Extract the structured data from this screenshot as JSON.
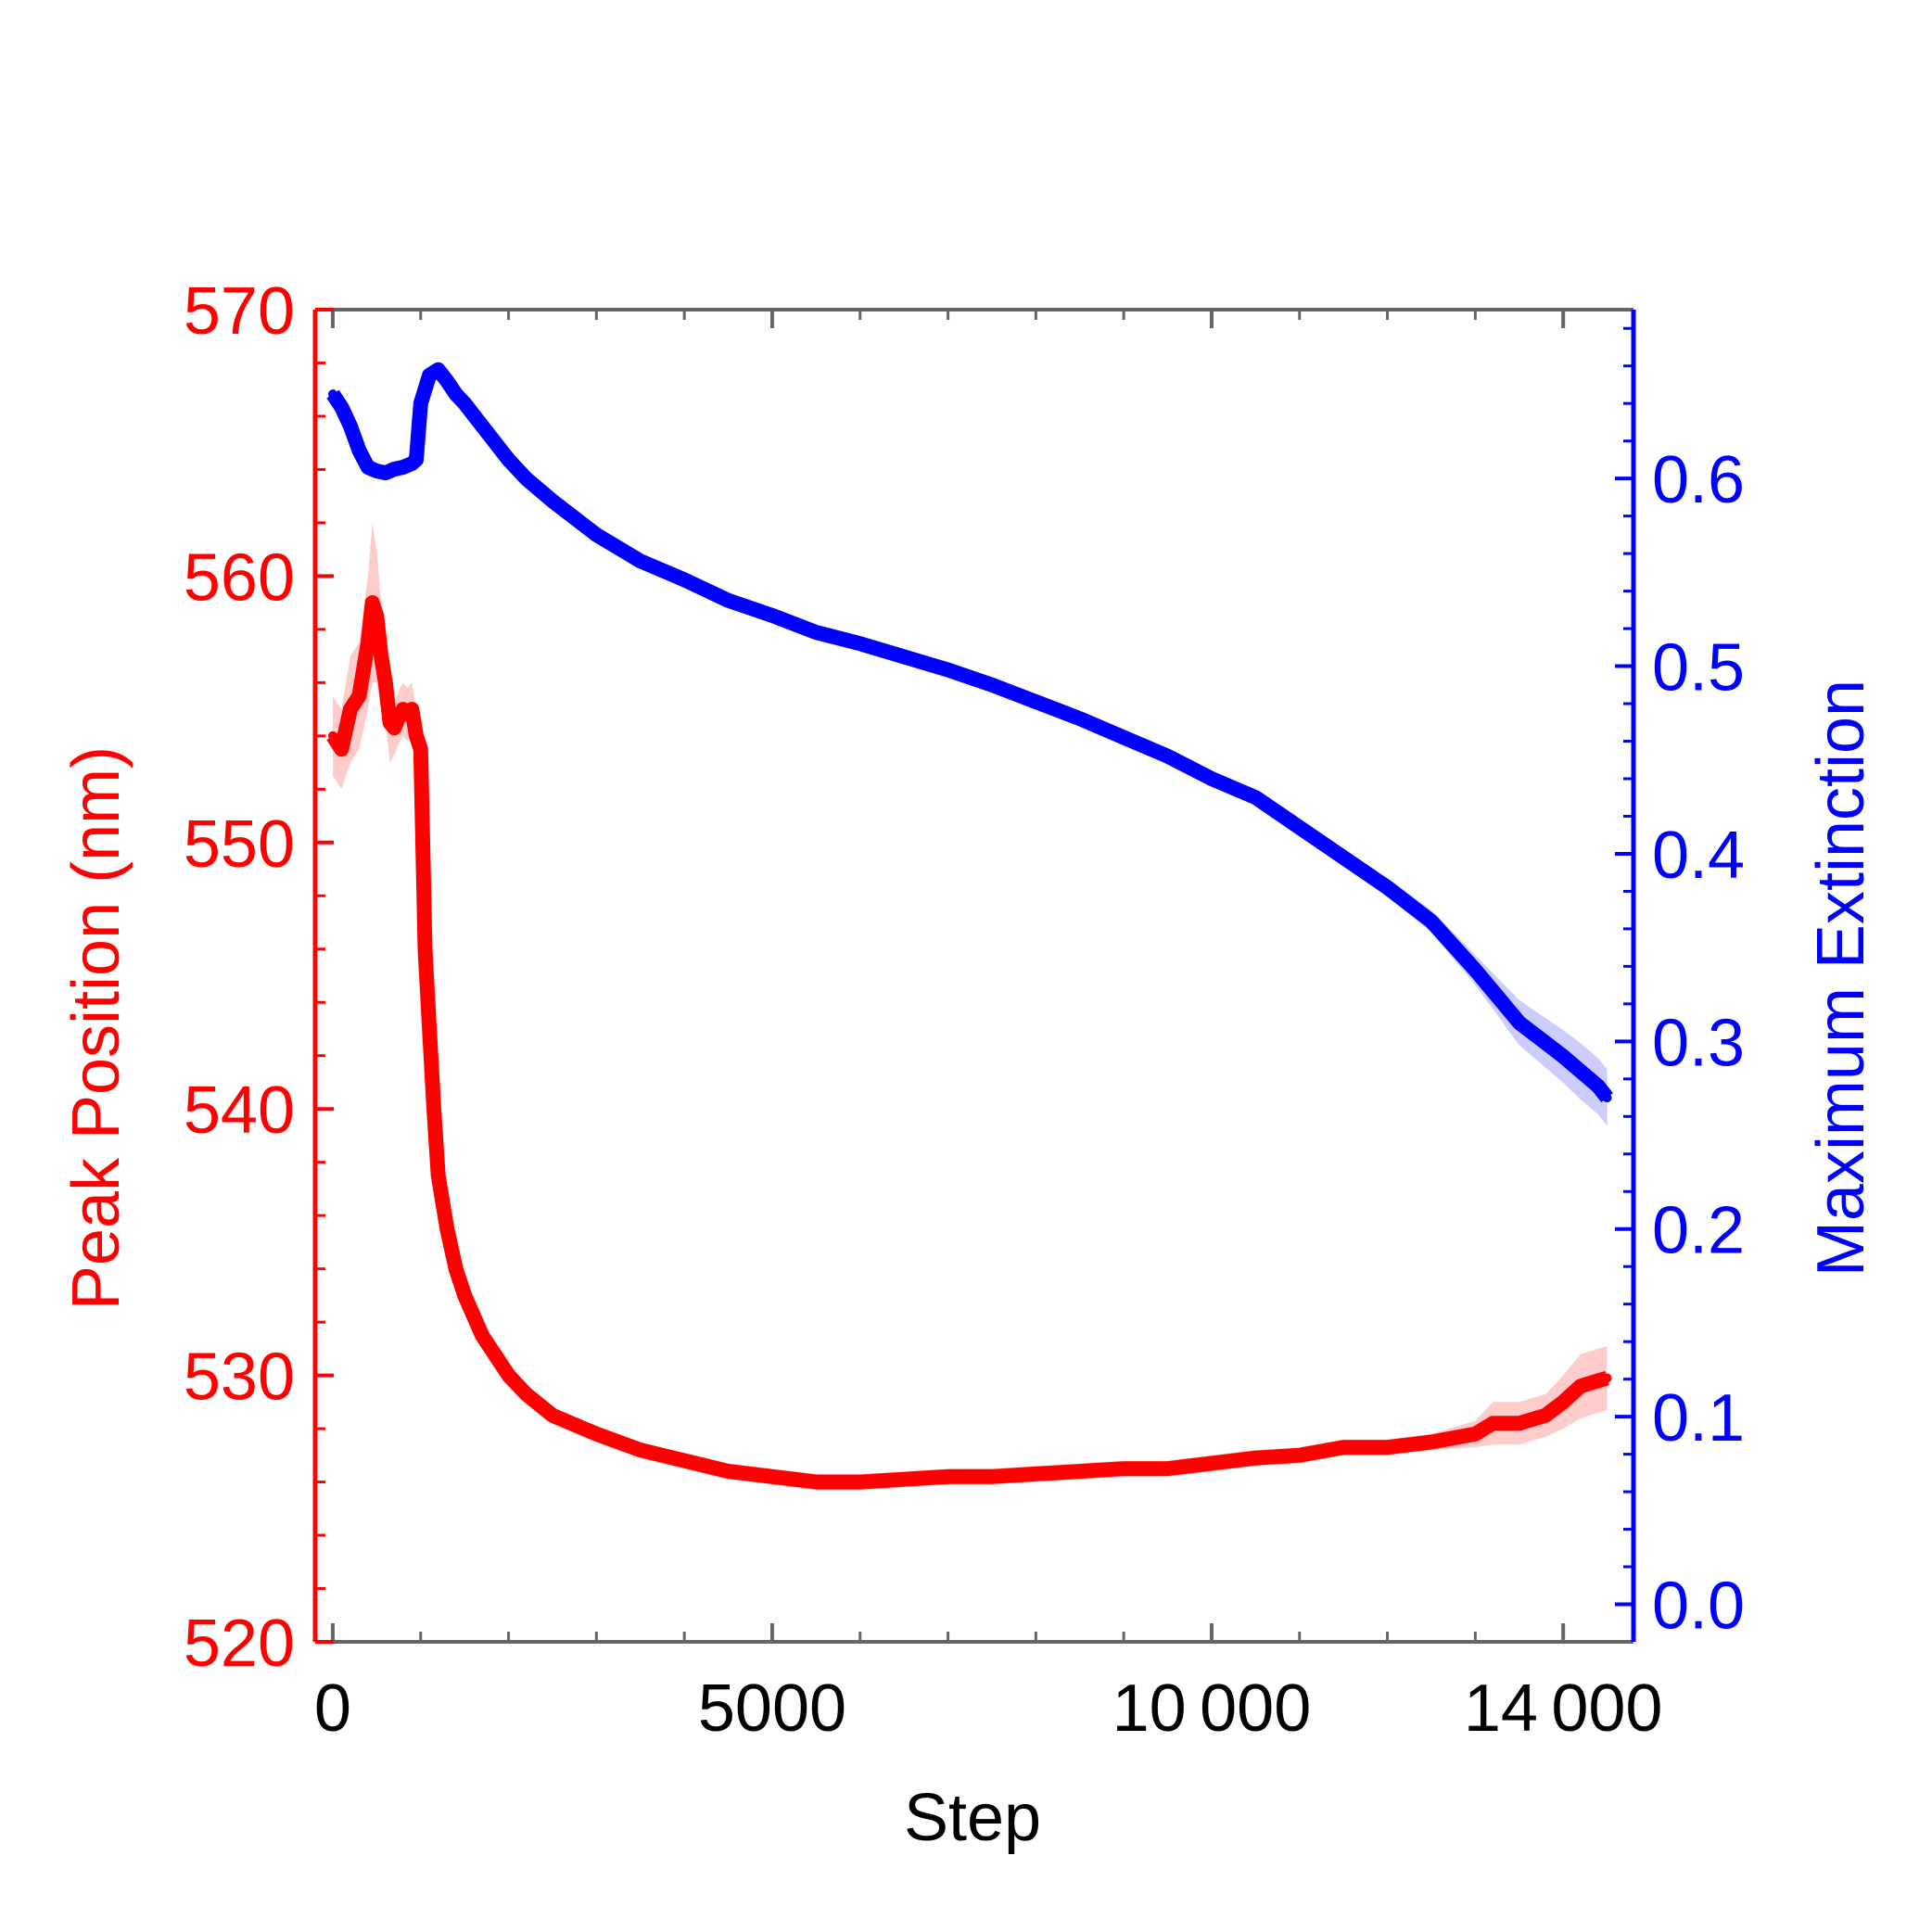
{
  "chart_data": {
    "type": "line",
    "title": "",
    "xlabel": "Step",
    "ylabel_left": "Peak Position (nm)",
    "ylabel_right": "Maximum Extinction",
    "xlim": [
      -200,
      14800
    ],
    "ylim_left": [
      520,
      570
    ],
    "ylim_right": [
      -0.02,
      0.69
    ],
    "x_ticks": [
      0,
      5000,
      10000,
      14000
    ],
    "x_tick_labels": [
      "0",
      "5000",
      "10 000",
      "14 000"
    ],
    "y_left_ticks": [
      520,
      530,
      540,
      550,
      560,
      570
    ],
    "y_left_tick_labels": [
      "520",
      "530",
      "540",
      "550",
      "560",
      "570"
    ],
    "y_right_ticks": [
      0.0,
      0.1,
      0.2,
      0.3,
      0.4,
      0.5,
      0.6
    ],
    "y_right_tick_labels": [
      "0.0",
      "0.1",
      "0.2",
      "0.3",
      "0.4",
      "0.5",
      "0.6"
    ],
    "grid": false,
    "legend": "none",
    "colors": {
      "left": "#ff0000",
      "right": "#0000ff",
      "frame": "#666666",
      "text": "#000000"
    },
    "series": [
      {
        "axis": "left",
        "color": "#ff0000",
        "x": [
          0,
          100,
          200,
          300,
          400,
          450,
          500,
          550,
          600,
          650,
          700,
          750,
          800,
          850,
          900,
          950,
          1000,
          1050,
          1100,
          1150,
          1200,
          1300,
          1400,
          1500,
          1700,
          2000,
          2200,
          2500,
          3000,
          3500,
          4000,
          4500,
          5000,
          5500,
          6000,
          6500,
          7000,
          7500,
          8000,
          8500,
          9000,
          9500,
          10000,
          10500,
          11000,
          11500,
          12000,
          12500,
          13000,
          13200,
          13500,
          13800,
          14000,
          14200,
          14400,
          14500
        ],
        "y": [
          554,
          553.5,
          555,
          555.5,
          557.5,
          559,
          558.5,
          557,
          556,
          554.5,
          554.3,
          554.7,
          555,
          554.8,
          555,
          554,
          553.5,
          546,
          543,
          540,
          537.5,
          535.5,
          534,
          533,
          531.5,
          530,
          529.3,
          528.5,
          527.8,
          527.2,
          526.8,
          526.4,
          526.2,
          526.0,
          526.0,
          526.1,
          526.2,
          526.2,
          526.3,
          526.4,
          526.5,
          526.5,
          526.7,
          526.9,
          527.0,
          527.3,
          527.3,
          527.5,
          527.8,
          528.2,
          528.2,
          528.5,
          529.0,
          529.6,
          529.8,
          529.9
        ],
        "y_err": [
          1.5,
          1.5,
          2.0,
          2.0,
          2.5,
          3.0,
          2.5,
          2.0,
          1.5,
          1.5,
          1.0,
          1.0,
          1.0,
          1.0,
          1.0,
          1.0,
          1.0,
          0.8,
          0.6,
          0.5,
          0.4,
          0.4,
          0.3,
          0.3,
          0.3,
          0.3,
          0.3,
          0.3,
          0.3,
          0.3,
          0.3,
          0.3,
          0.3,
          0.3,
          0.3,
          0.3,
          0.3,
          0.3,
          0.3,
          0.3,
          0.3,
          0.3,
          0.3,
          0.3,
          0.3,
          0.3,
          0.3,
          0.3,
          0.5,
          0.8,
          0.8,
          0.8,
          1.0,
          1.2,
          1.2,
          1.2
        ]
      },
      {
        "axis": "right",
        "color": "#0000ff",
        "x": [
          0,
          100,
          200,
          300,
          400,
          500,
          600,
          700,
          800,
          900,
          950,
          1000,
          1100,
          1200,
          1300,
          1400,
          1500,
          1700,
          2000,
          2200,
          2500,
          3000,
          3500,
          4000,
          4500,
          5000,
          5500,
          6000,
          6500,
          7000,
          7500,
          8000,
          8500,
          9000,
          9500,
          10000,
          10500,
          11000,
          11500,
          12000,
          12500,
          13000,
          13500,
          14000,
          14200,
          14400,
          14500
        ],
        "y": [
          0.645,
          0.638,
          0.628,
          0.615,
          0.606,
          0.604,
          0.603,
          0.605,
          0.606,
          0.608,
          0.61,
          0.64,
          0.655,
          0.658,
          0.652,
          0.645,
          0.64,
          0.628,
          0.61,
          0.6,
          0.588,
          0.57,
          0.556,
          0.546,
          0.535,
          0.527,
          0.518,
          0.512,
          0.505,
          0.498,
          0.49,
          0.481,
          0.472,
          0.462,
          0.452,
          0.44,
          0.43,
          0.414,
          0.398,
          0.382,
          0.364,
          0.338,
          0.31,
          0.292,
          0.284,
          0.276,
          0.27
        ],
        "y_err": [
          0.004,
          0.004,
          0.004,
          0.004,
          0.004,
          0.004,
          0.004,
          0.004,
          0.004,
          0.004,
          0.004,
          0.004,
          0.004,
          0.004,
          0.004,
          0.004,
          0.004,
          0.004,
          0.004,
          0.004,
          0.004,
          0.004,
          0.004,
          0.004,
          0.004,
          0.004,
          0.004,
          0.004,
          0.004,
          0.004,
          0.004,
          0.004,
          0.004,
          0.004,
          0.004,
          0.004,
          0.004,
          0.004,
          0.004,
          0.005,
          0.006,
          0.008,
          0.012,
          0.014,
          0.015,
          0.015,
          0.015
        ]
      }
    ]
  }
}
